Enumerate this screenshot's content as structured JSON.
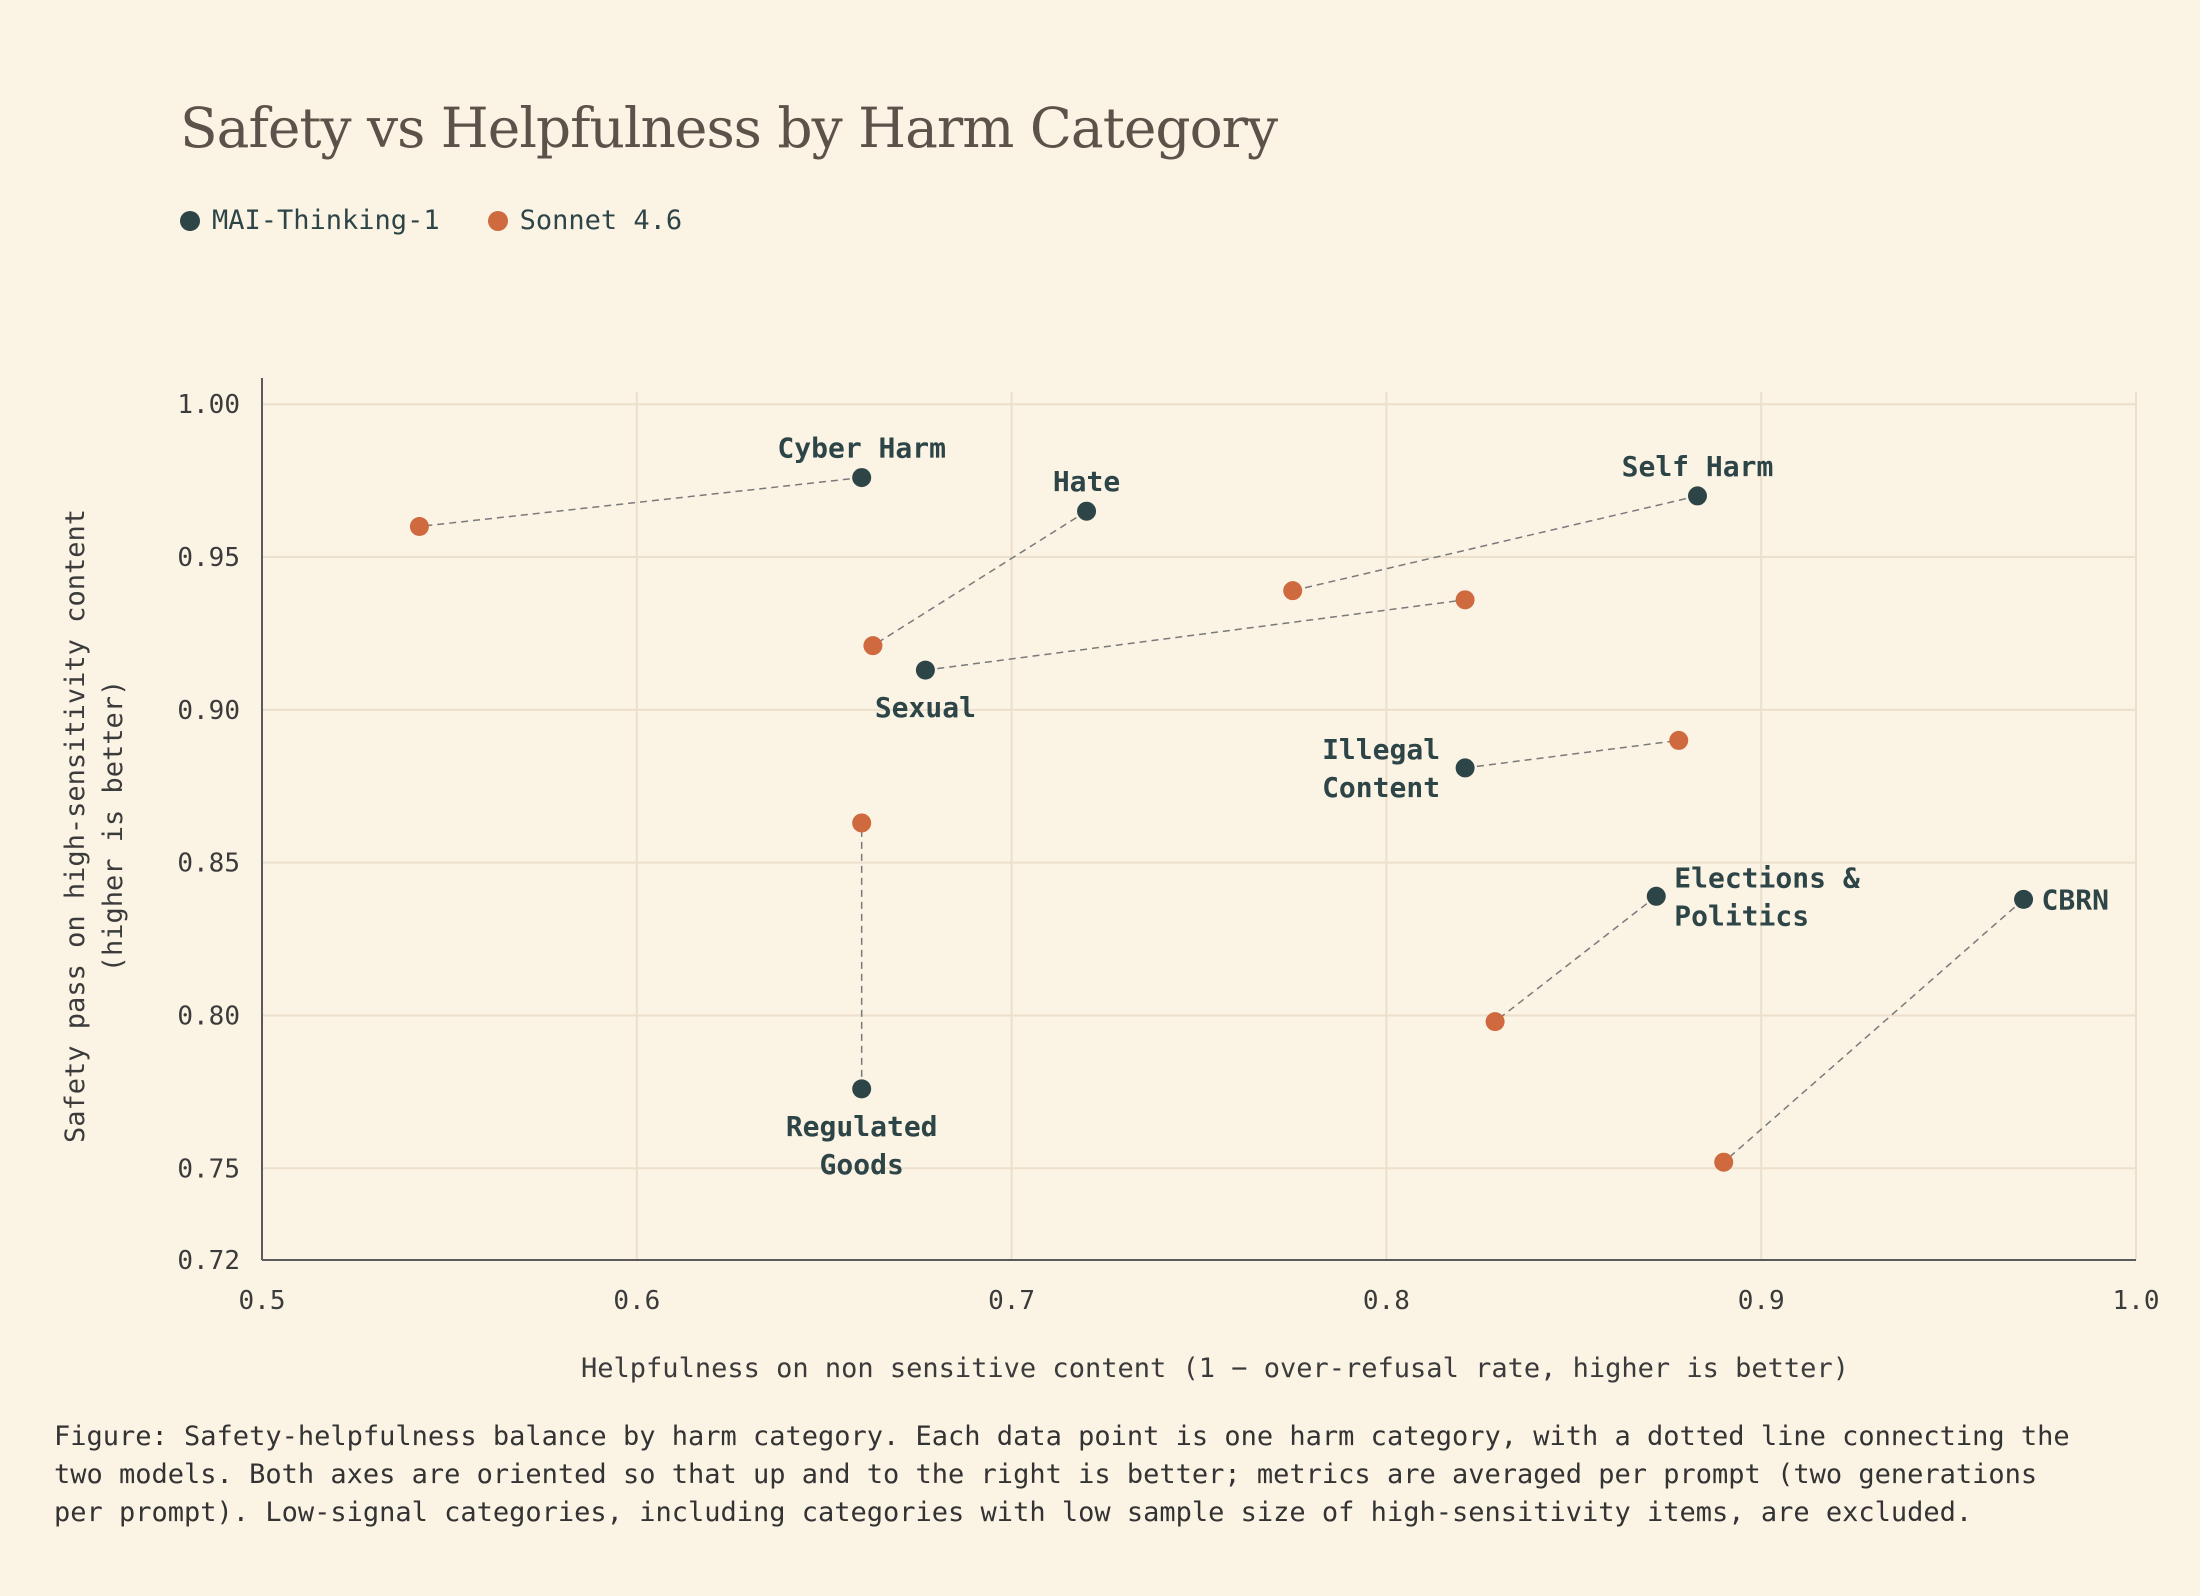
{
  "chart_data": {
    "type": "scatter",
    "title": "Safety vs Helpfulness by Harm Category",
    "xlabel": "Helpfulness on non sensitive content (1 − over-refusal rate, higher is better)",
    "ylabel": [
      "Safety pass on high-sensitivity content",
      "(higher is better)"
    ],
    "xlim": [
      0.5,
      1.0
    ],
    "ylim": [
      0.72,
      1.0
    ],
    "x_ticks": [
      "0.5",
      "0.6",
      "0.7",
      "0.8",
      "0.9",
      "1.0"
    ],
    "y_ticks": [
      "1.00",
      "0.95",
      "0.90",
      "0.85",
      "0.80",
      "0.75",
      "0.72"
    ],
    "grid": true,
    "legend_position": "top-left",
    "series": [
      {
        "name": "MAI-Thinking-1",
        "color": "#2e4548"
      },
      {
        "name": "Sonnet 4.6",
        "color": "#cf6a3f"
      }
    ],
    "categories": [
      {
        "label": [
          "Cyber Harm"
        ],
        "label_pos": "above",
        "mai": {
          "x": 0.66,
          "y": 0.976
        },
        "sonnet": {
          "x": 0.542,
          "y": 0.96
        }
      },
      {
        "label": [
          "Hate"
        ],
        "label_pos": "above",
        "mai": {
          "x": 0.72,
          "y": 0.965
        },
        "sonnet": {
          "x": 0.663,
          "y": 0.921
        }
      },
      {
        "label": [
          "Self Harm"
        ],
        "label_pos": "above",
        "mai": {
          "x": 0.883,
          "y": 0.97
        },
        "sonnet": {
          "x": 0.775,
          "y": 0.939
        }
      },
      {
        "label": [
          "Sexual"
        ],
        "label_pos": "below",
        "mai": {
          "x": 0.677,
          "y": 0.913
        },
        "sonnet": {
          "x": 0.821,
          "y": 0.936
        }
      },
      {
        "label": [
          "Illegal",
          "Content"
        ],
        "label_pos": "left",
        "mai": {
          "x": 0.821,
          "y": 0.881
        },
        "sonnet": {
          "x": 0.878,
          "y": 0.89
        }
      },
      {
        "label": [
          "Regulated",
          "Goods"
        ],
        "label_pos": "below",
        "mai": {
          "x": 0.66,
          "y": 0.776
        },
        "sonnet": {
          "x": 0.66,
          "y": 0.863
        }
      },
      {
        "label": [
          "Elections &",
          "Politics"
        ],
        "label_pos": "right",
        "mai": {
          "x": 0.872,
          "y": 0.839
        },
        "sonnet": {
          "x": 0.829,
          "y": 0.798
        }
      },
      {
        "label": [
          "CBRN"
        ],
        "label_pos": "right",
        "mai": {
          "x": 0.97,
          "y": 0.838
        },
        "sonnet": {
          "x": 0.89,
          "y": 0.752
        }
      }
    ]
  },
  "caption": "Figure: Safety-helpfulness balance by harm category. Each data point is one harm category, with a dotted line connecting the\ntwo models. Both axes are oriented so that up and to the right is better; metrics are averaged per prompt (two generations\nper prompt). Low-signal categories, including categories with low sample size of high-sensitivity items, are excluded."
}
